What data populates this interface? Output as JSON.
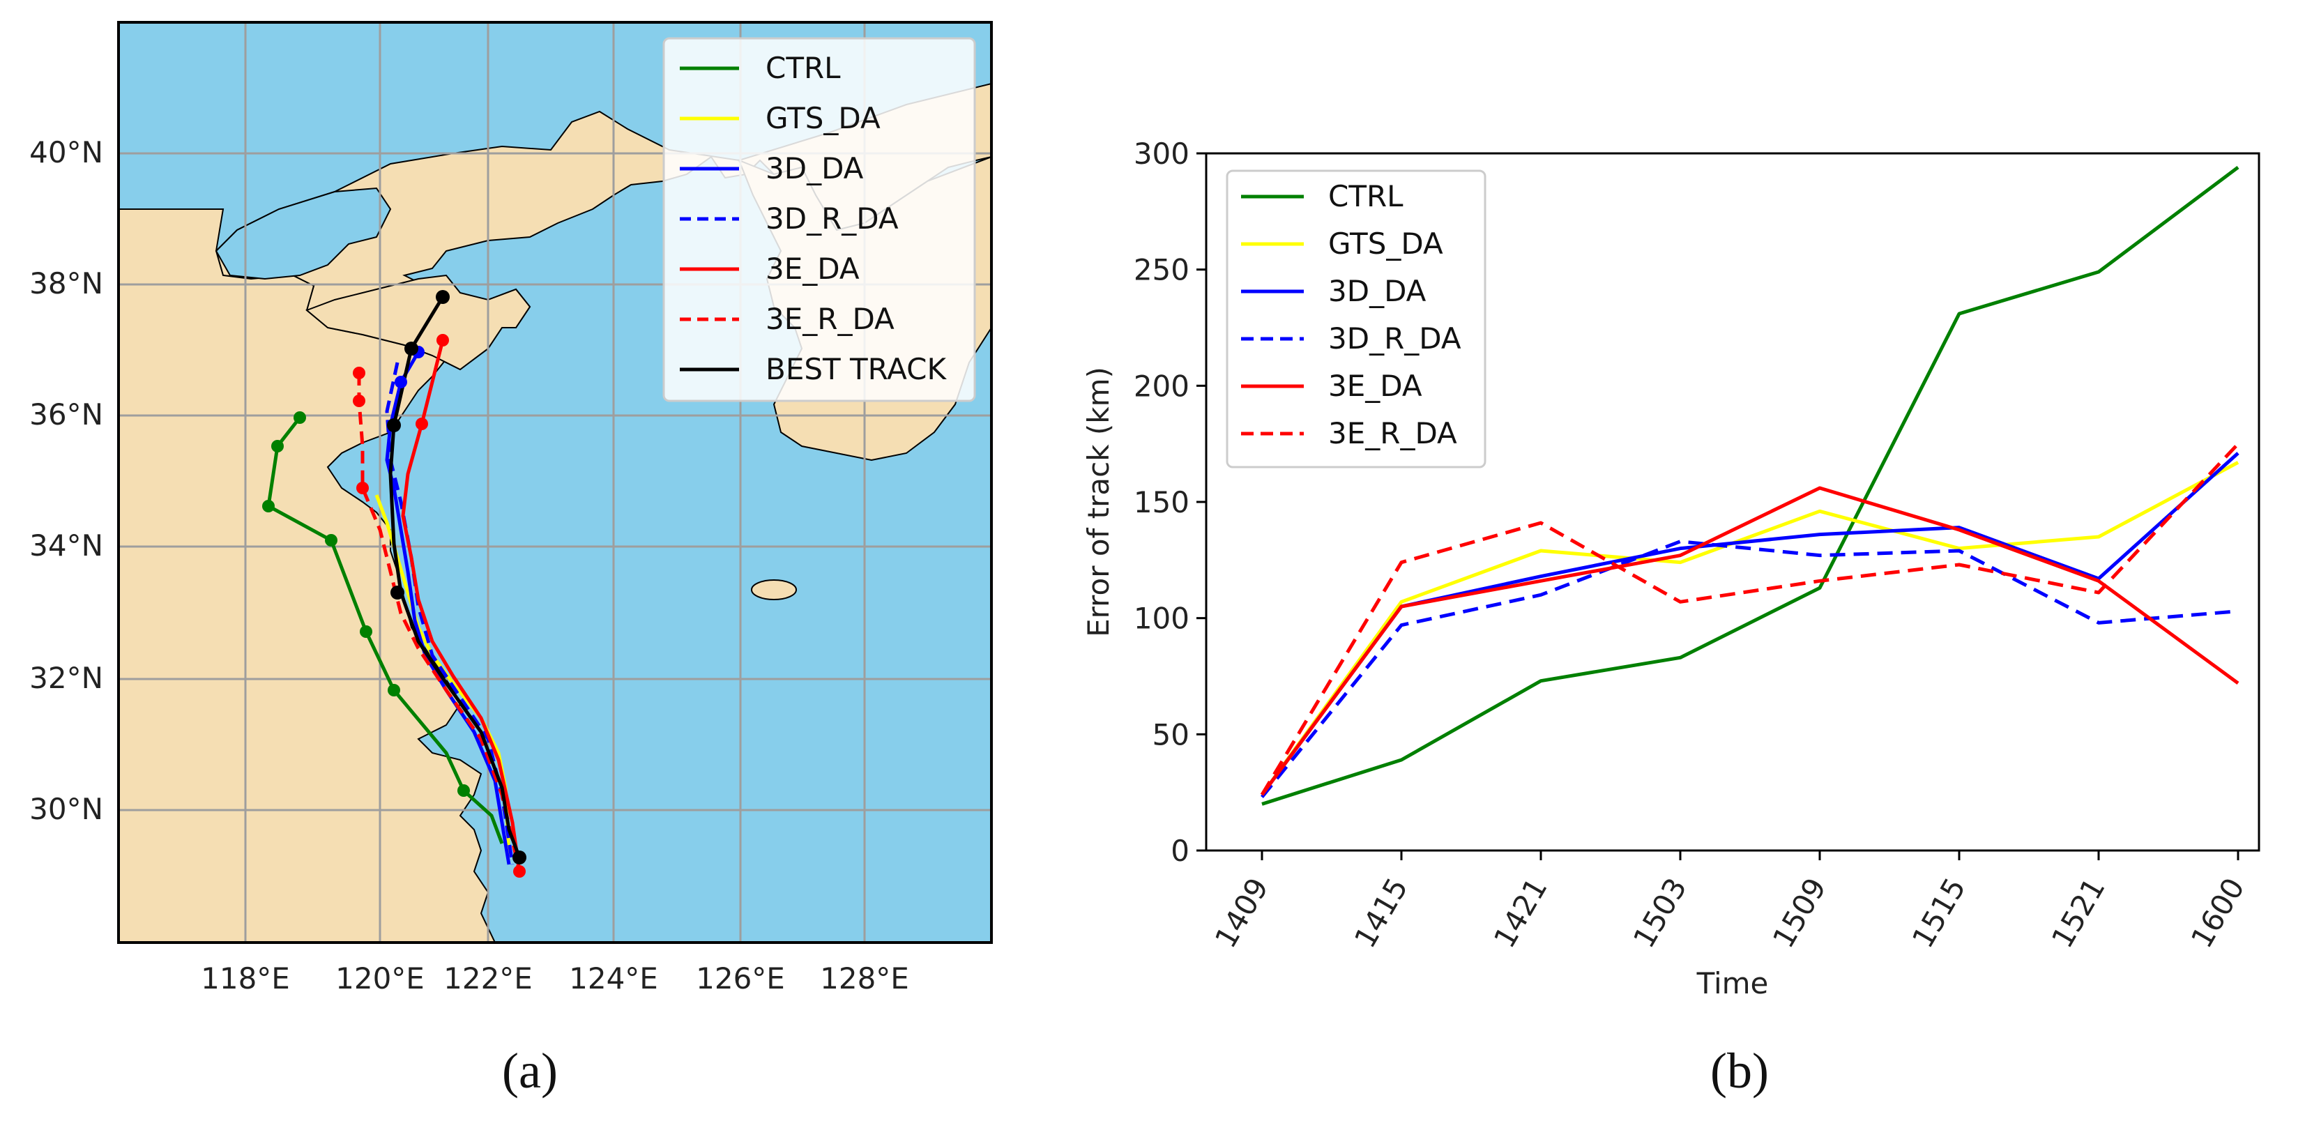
{
  "panels": {
    "a": "(a)",
    "b": "(b)"
  },
  "map": {
    "lon_ticks": [
      "118°E",
      "120°E",
      "122°E",
      "124°E",
      "126°E",
      "128°E"
    ],
    "lat_ticks": [
      "30°N",
      "32°N",
      "34°N",
      "36°N",
      "38°N",
      "40°N"
    ],
    "land_color": "#f5deb3",
    "sea_color": "#87ceeb",
    "legend": [
      {
        "label": "CTRL",
        "color": "#008000",
        "dash": false
      },
      {
        "label": "GTS_DA",
        "color": "#ffff00",
        "dash": false
      },
      {
        "label": "3D_DA",
        "color": "#0000ff",
        "dash": false
      },
      {
        "label": "3D_R_DA",
        "color": "#0000ff",
        "dash": true
      },
      {
        "label": "3E_DA",
        "color": "#ff0000",
        "dash": false
      },
      {
        "label": "3E_R_DA",
        "color": "#ff0000",
        "dash": true
      },
      {
        "label": "BEST TRACK",
        "color": "#000000",
        "dash": false
      }
    ]
  },
  "chart_data": {
    "type": "line",
    "title": "",
    "xlabel": "Time",
    "ylabel": "Error of track (km)",
    "categories": [
      "1409",
      "1415",
      "1421",
      "1503",
      "1509",
      "1515",
      "1521",
      "1600"
    ],
    "ylim": [
      0,
      300
    ],
    "yticks": [
      0,
      50,
      100,
      150,
      200,
      250,
      300
    ],
    "legend_position": "top-left",
    "series": [
      {
        "name": "CTRL",
        "color": "#008000",
        "dash": false,
        "values": [
          20,
          39,
          73,
          83,
          113,
          231,
          249,
          294
        ]
      },
      {
        "name": "GTS_DA",
        "color": "#ffff00",
        "dash": false,
        "values": [
          24,
          107,
          129,
          124,
          146,
          130,
          135,
          167
        ]
      },
      {
        "name": "3D_DA",
        "color": "#0000ff",
        "dash": false,
        "values": [
          24,
          105,
          118,
          130,
          136,
          139,
          117,
          171
        ]
      },
      {
        "name": "3D_R_DA",
        "color": "#0000ff",
        "dash": true,
        "values": [
          23,
          97,
          110,
          133,
          127,
          129,
          98,
          103
        ]
      },
      {
        "name": "3E_DA",
        "color": "#ff0000",
        "dash": false,
        "values": [
          24,
          105,
          116,
          127,
          156,
          138,
          116,
          72
        ]
      },
      {
        "name": "3E_R_DA",
        "color": "#ff0000",
        "dash": true,
        "values": [
          24,
          124,
          141,
          107,
          116,
          123,
          111,
          175
        ]
      }
    ]
  }
}
